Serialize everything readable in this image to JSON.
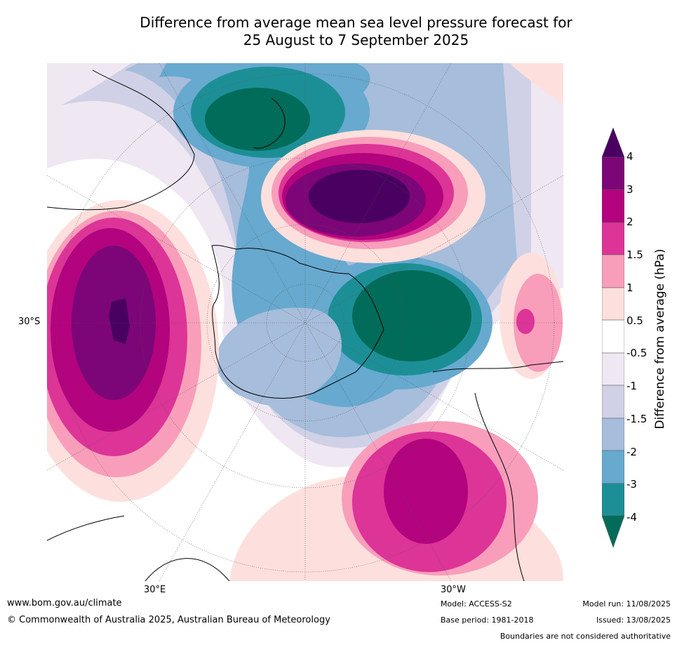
{
  "title": {
    "line1": "Difference from average mean sea level pressure forecast for",
    "line2": "25 August to 7 September 2025"
  },
  "map": {
    "latitude_labels": [
      "30°S"
    ],
    "longitude_labels": [
      "30°E",
      "30°W"
    ]
  },
  "legend": {
    "label": "Difference from average (hPa)",
    "ticks": [
      "4",
      "3",
      "2",
      "1.5",
      "1",
      "0.5",
      "-0.5",
      "-1",
      "-1.5",
      "-2",
      "-3",
      "-4"
    ],
    "colors": {
      "gt4": "#4a0060",
      "3_4": "#7c0677",
      "2_3": "#b3037e",
      "1.5_2": "#dd3497",
      "1_1.5": "#f89ebb",
      "0.5_1": "#fde0dd",
      "neutral": "#ffffff",
      "-1_-0.5": "#efe7f2",
      "-1.5_-1": "#d0d1e6",
      "-2_-1.5": "#a6bddb",
      "-3_-2": "#67a9cf",
      "-4_-3": "#1c8f96",
      "lt-4": "#016c59"
    }
  },
  "footer": {
    "website": "www.bom.gov.au/climate",
    "copyright": "© Commonwealth of Australia 2025, Australian Bureau of Meteorology",
    "model": "Model: ACCESS-S2",
    "base_period": "Base period: 1981-2018",
    "model_run": "Model run: 11/08/2025",
    "issued": "Issued: 13/08/2025",
    "disclaimer": "Boundaries are not considered authoritative"
  }
}
